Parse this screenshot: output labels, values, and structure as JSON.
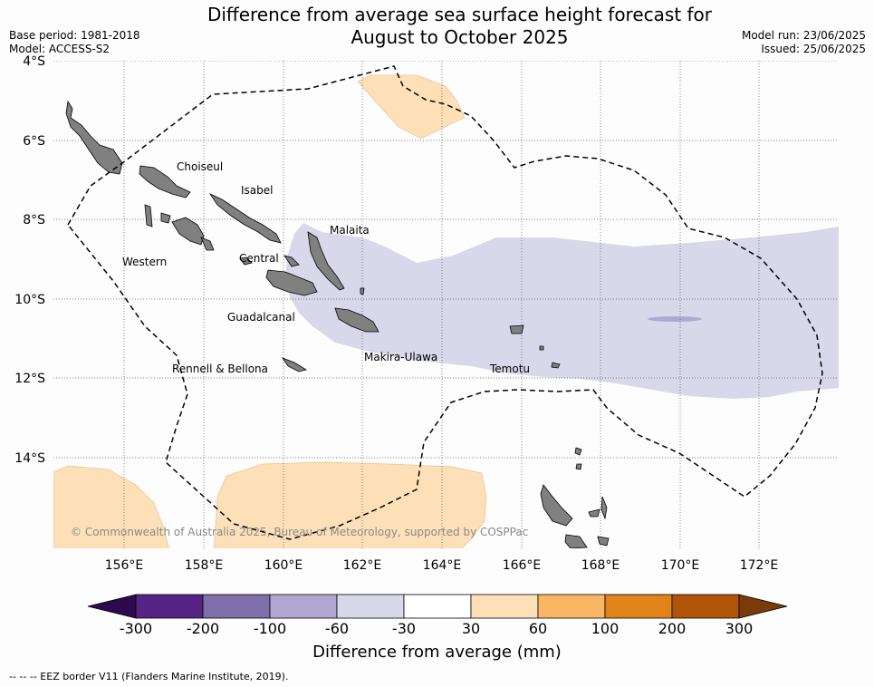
{
  "title_line1": "Difference from average sea surface height forecast for",
  "title_line2": "August to October 2025",
  "meta": {
    "base_period": "Base period: 1981-2018",
    "model": "Model: ACCESS-S2",
    "model_run": "Model run: 23/06/2025",
    "issued": "Issued: 25/06/2025"
  },
  "axes": {
    "lat_labels": [
      "4°S",
      "6°S",
      "8°S",
      "10°S",
      "12°S",
      "14°S"
    ],
    "lon_labels": [
      "156°E",
      "158°E",
      "160°E",
      "162°E",
      "164°E",
      "166°E",
      "168°E",
      "170°E",
      "172°E"
    ]
  },
  "places": {
    "choiseul": "Choiseul",
    "isabel": "Isabel",
    "malaita": "Malaita",
    "western": "Western",
    "central": "Central",
    "guadalcanal": "Guadalcanal",
    "makira": "Makira-Ulawa",
    "temotu": "Temotu",
    "rennell": "Rennell & Bellona"
  },
  "copyright": "© Commonwealth of Australia 2025, Bureau of Meteorology, supported by COSPPac",
  "colorbar": {
    "title": "Difference from average (mm)",
    "ticks": [
      "-300",
      "-200",
      "-100",
      "-60",
      "-30",
      "30",
      "60",
      "100",
      "200",
      "300"
    ],
    "colors": {
      "below": "#2d0a4d",
      "c1": "#552484",
      "c2": "#7f6faa",
      "c3": "#b0a8d0",
      "c4": "#d8d8ea",
      "c5": "#ffffff",
      "c6": "#fde0b7",
      "c7": "#f9b763",
      "c8": "#e08318",
      "c9": "#b05508",
      "above": "#7a3b08"
    }
  },
  "footnote": "--  --  -- EEZ border V11 (Flanders Marine Institute, 2019)."
}
